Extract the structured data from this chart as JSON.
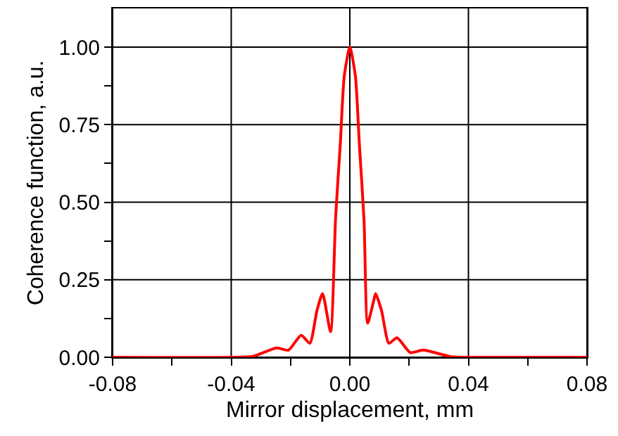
{
  "chart_data": {
    "type": "line",
    "xlabel": "Mirror displacement, mm",
    "ylabel": "Coherence function, a.u.",
    "x": [
      -0.08,
      -0.04,
      -0.0326,
      -0.0247,
      -0.0207,
      -0.0164,
      -0.0135,
      -0.0111,
      -0.0092,
      -0.0065,
      -0.0048,
      -0.0032,
      -0.0019,
      0,
      0.0019,
      0.0032,
      0.0048,
      0.006,
      0.008,
      0.0087,
      0.0107,
      0.0132,
      0.0159,
      0.0204,
      0.0247,
      0.034,
      0.04,
      0.08
    ],
    "series": [
      {
        "color": "#ff0000",
        "values": [
          0,
          0,
          0.003,
          0.03,
          0.023,
          0.071,
          0.045,
          0.15,
          0.205,
          0.083,
          0.45,
          0.69,
          0.905,
          1.0,
          0.905,
          0.69,
          0.44,
          0.11,
          0.18,
          0.205,
          0.15,
          0.045,
          0.063,
          0.015,
          0.023,
          0.002,
          0,
          0
        ]
      }
    ],
    "xlim": [
      -0.08,
      0.08
    ],
    "xticks": [
      {
        "value": -0.08,
        "label": "-0.08"
      },
      {
        "value": -0.06,
        "label": null
      },
      {
        "value": -0.04,
        "label": "-0.04"
      },
      {
        "value": -0.02,
        "label": null
      },
      {
        "value": 0,
        "label": "0.00"
      },
      {
        "value": 0.02,
        "label": null
      },
      {
        "value": 0.04,
        "label": "0.04"
      },
      {
        "value": 0.06,
        "label": null
      },
      {
        "value": 0.08,
        "label": "0.08"
      }
    ],
    "ylim": [
      0,
      1.125
    ],
    "yticks": [
      {
        "value": 0,
        "label": "0.00"
      },
      {
        "value": 0.125,
        "label": null
      },
      {
        "value": 0.25,
        "label": "0.25"
      },
      {
        "value": 0.375,
        "label": null
      },
      {
        "value": 0.5,
        "label": "0.50"
      },
      {
        "value": 0.625,
        "label": null
      },
      {
        "value": 0.75,
        "label": "0.75"
      },
      {
        "value": 0.875,
        "label": null
      },
      {
        "value": 1.0,
        "label": "1.00"
      }
    ],
    "grid": true,
    "line_style": "solid"
  }
}
